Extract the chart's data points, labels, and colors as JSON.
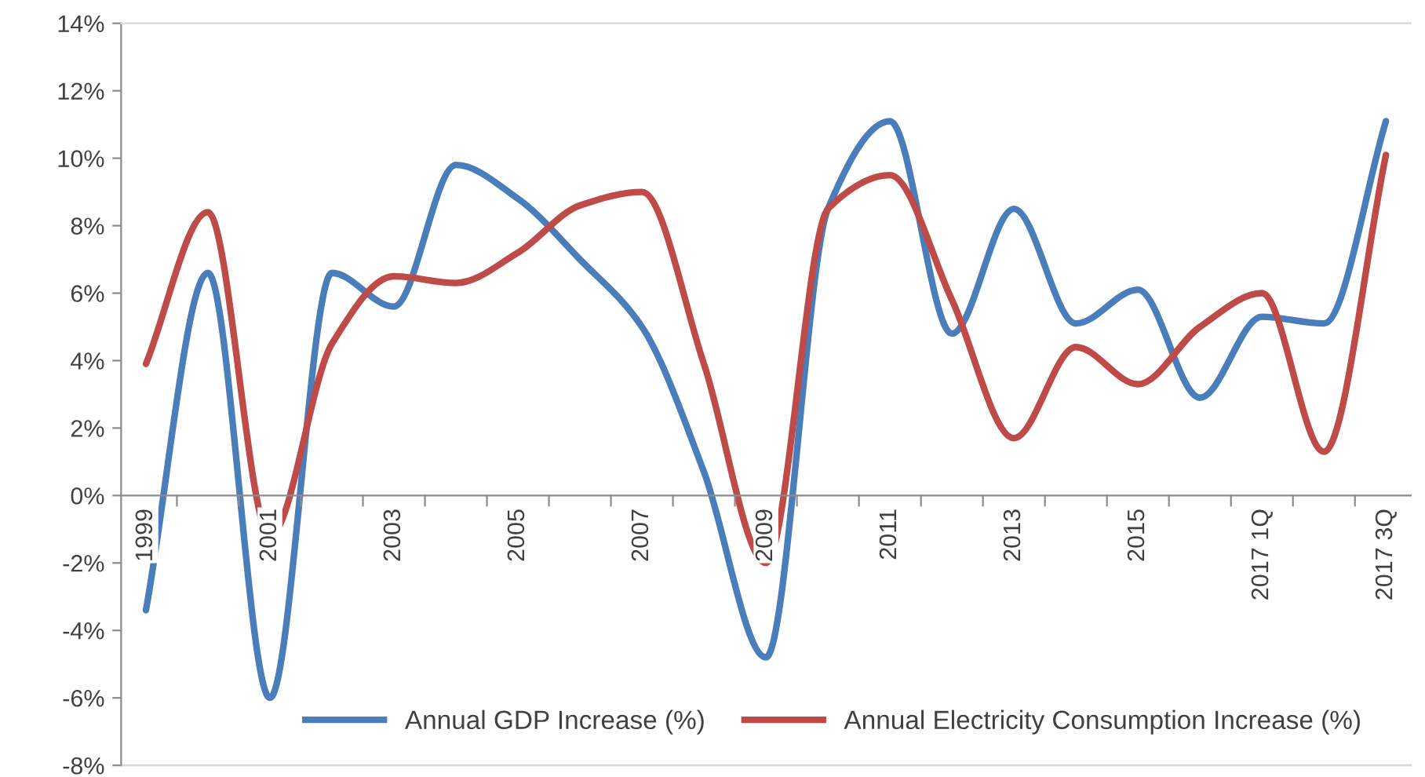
{
  "chart_data": {
    "type": "line",
    "categories": [
      "1999",
      null,
      "2001",
      null,
      "2003",
      null,
      "2005",
      null,
      "2007",
      null,
      "2009",
      null,
      "2011",
      null,
      "2013",
      null,
      "2015",
      null,
      "2017 1Q",
      null,
      "2017 3Q"
    ],
    "series": [
      {
        "name": "Annual GDP Increase (%)",
        "color": "#4a7ebb",
        "values": [
          -3.4,
          6.6,
          -6.0,
          6.6,
          5.6,
          9.8,
          8.8,
          7.0,
          5.0,
          0.7,
          -4.8,
          8.5,
          11.1,
          4.8,
          8.5,
          5.1,
          6.1,
          2.9,
          5.3,
          5.1,
          11.1
        ]
      },
      {
        "name": "Annual Electricity Consumption Increase (%)",
        "color": "#be4b48",
        "values": [
          3.9,
          8.4,
          -1.2,
          4.5,
          6.5,
          6.3,
          7.2,
          8.6,
          9.0,
          3.9,
          -2.0,
          8.5,
          9.5,
          5.8,
          1.7,
          4.4,
          3.3,
          5.0,
          6.0,
          1.3,
          10.1
        ]
      }
    ],
    "ylim": [
      -8,
      14
    ],
    "yticks": [
      {
        "value": -8,
        "label": "-8%"
      },
      {
        "value": -6,
        "label": "-6%"
      },
      {
        "value": -4,
        "label": "-4%"
      },
      {
        "value": -2,
        "label": "-2%"
      },
      {
        "value": 0,
        "label": "0%"
      },
      {
        "value": 2,
        "label": "2%"
      },
      {
        "value": 4,
        "label": "4%"
      },
      {
        "value": 6,
        "label": "6%"
      },
      {
        "value": 8,
        "label": "8%"
      },
      {
        "value": 10,
        "label": "10%"
      },
      {
        "value": 12,
        "label": "12%"
      },
      {
        "value": 14,
        "label": "14%"
      }
    ],
    "grid": false,
    "legend": "bottom",
    "marker": "none",
    "line_style": "solid"
  }
}
